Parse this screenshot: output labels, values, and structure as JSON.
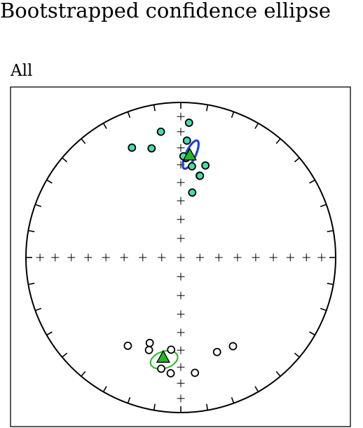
{
  "chart_data": {
    "type": "scatter",
    "title": "Bootstrapped confidence ellipse",
    "panel_label": "All",
    "projection": "equal-area stereonet",
    "series": [
      {
        "hemisphere": "lower",
        "fill": "#40e0a8",
        "edge": "#000000",
        "points": [
          {
            "dec": 10.0,
            "inc": 55.0
          },
          {
            "dec": 13.0,
            "inc": 45.0
          },
          {
            "dec": 13.2,
            "inc": 45.0
          },
          {
            "dec": 7.0,
            "inc": 40.5
          },
          {
            "dec": 15.0,
            "inc": 38.5
          },
          {
            "dec": 3.0,
            "inc": 36.0
          },
          {
            "dec": 1.5,
            "inc": 35.0
          },
          {
            "dec": -15.0,
            "inc": 28.0
          },
          {
            "dec": -24.0,
            "inc": 23.5
          },
          {
            "dec": 3.0,
            "inc": 25.5
          },
          {
            "dec": -9.0,
            "inc": 19.0
          },
          {
            "dec": 3.5,
            "inc": 14.0
          }
        ]
      },
      {
        "hemisphere": "upper",
        "fill": "#ffffff",
        "edge": "#000000",
        "points": [
          {
            "dec": 185.0,
            "inc": -26.0
          },
          {
            "dec": 190.0,
            "inc": -28.0
          },
          {
            "dec": 173.0,
            "inc": -26.0
          },
          {
            "dec": 159.0,
            "inc": -35.0
          },
          {
            "dec": 149.5,
            "inc": -34.0
          },
          {
            "dec": 199.0,
            "inc": -37.0
          },
          {
            "dec": 211.0,
            "inc": -34.0
          },
          {
            "dec": 200.0,
            "inc": -41.0
          },
          {
            "dec": 186.0,
            "inc": -40.0
          }
        ]
      }
    ],
    "means": [
      {
        "dec": 5.0,
        "inc": 34.0,
        "fill": "#22b822",
        "edge": "#000000"
      },
      {
        "dec": 190.0,
        "inc": -35.0,
        "fill": "#22b822",
        "edge": "#000000"
      }
    ],
    "ellipses": [
      {
        "cdec": 5.0,
        "cinc": 34.0,
        "color": "#1f3fe0"
      },
      {
        "cdec": 190.0,
        "cinc": -35.0,
        "color": "#22b822"
      }
    ],
    "grid": false
  }
}
